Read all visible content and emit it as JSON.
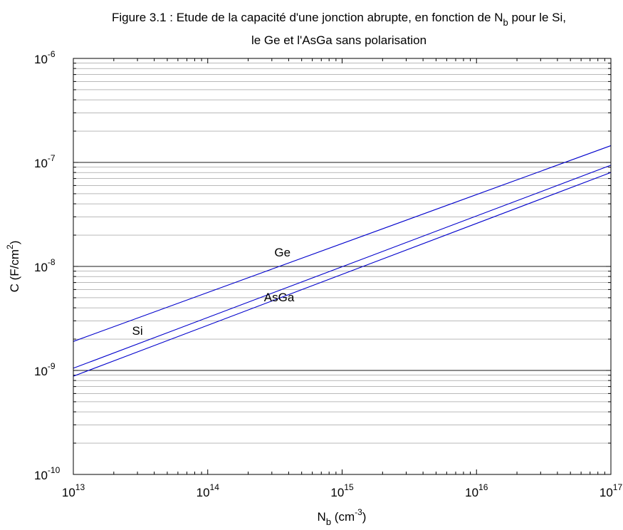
{
  "chart_data": {
    "type": "line",
    "title_lines": [
      {
        "parts": [
          {
            "text": "Figure 3.1 : Etude de la capacité d'une jonction abrupte, en fonction de N",
            "sub": false
          },
          {
            "text": "b",
            "sub": true
          },
          {
            "text": " pour le Si,",
            "sub": false
          }
        ]
      },
      {
        "parts": [
          {
            "text": "le Ge et l'AsGa sans polarisation",
            "sub": false
          }
        ]
      }
    ],
    "xlabel": {
      "base": "N",
      "sub": "b",
      "rest": " (cm",
      "sup": "-3",
      "end": ")"
    },
    "ylabel": {
      "text": "C (F/cm",
      "sup": "2",
      "end": ")"
    },
    "x_scale": "log",
    "y_scale": "log",
    "xlim": [
      10000000000000.0,
      1e+17
    ],
    "ylim": [
      1e-10,
      1e-06
    ],
    "x_ticks": [
      {
        "base": "10",
        "exp": "13",
        "value": 10000000000000.0
      },
      {
        "base": "10",
        "exp": "14",
        "value": 100000000000000.0
      },
      {
        "base": "10",
        "exp": "15",
        "value": 1000000000000000.0
      },
      {
        "base": "10",
        "exp": "16",
        "value": 1e+16
      },
      {
        "base": "10",
        "exp": "17",
        "value": 1e+17
      }
    ],
    "y_ticks": [
      {
        "base": "10",
        "exp": "-10",
        "value": 1e-10
      },
      {
        "base": "10",
        "exp": "-9",
        "value": 1e-09
      },
      {
        "base": "10",
        "exp": "-8",
        "value": 1e-08
      },
      {
        "base": "10",
        "exp": "-7",
        "value": 1e-07
      },
      {
        "base": "10",
        "exp": "-6",
        "value": 1e-06
      }
    ],
    "grid": {
      "y_major": true,
      "y_minor": true,
      "x": false
    },
    "series": [
      {
        "name": "Ge",
        "x": [
          10000000000000.0,
          1e+17
        ],
        "y": [
          1.9e-09,
          1.45e-07
        ]
      },
      {
        "name": "Si",
        "x": [
          10000000000000.0,
          1e+17
        ],
        "y": [
          1.05e-09,
          9.4e-08
        ]
      },
      {
        "name": "AsGa",
        "x": [
          10000000000000.0,
          1e+17
        ],
        "y": [
          8.8e-10,
          8e-08
        ]
      }
    ],
    "annotations": [
      {
        "text": "Ge",
        "x": 360000000000000.0,
        "y": 1.25e-08
      },
      {
        "text": "Si",
        "x": 30000000000000.0,
        "y": 2.2e-09
      },
      {
        "text": "AsGa",
        "x": 340000000000000.0,
        "y": 4.6e-09
      }
    ],
    "colors": {
      "series": "#0000cc",
      "axes": "#000000",
      "grid": "#000000",
      "background": "#ffffff"
    }
  }
}
